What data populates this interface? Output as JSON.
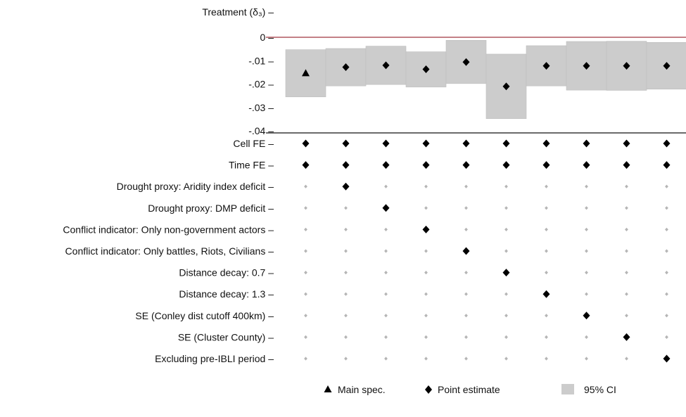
{
  "chart_data": {
    "type": "scatter",
    "title": "",
    "ylabel": "Treatment (δ₃) –",
    "ylim": [
      -0.046,
      0.004
    ],
    "y_ticks": [
      {
        "value": 0,
        "label": "0 –"
      },
      {
        "value": -0.01,
        "label": "-.01 –"
      },
      {
        "value": -0.02,
        "label": "-.02 –"
      },
      {
        "value": -0.03,
        "label": "-.03 –"
      },
      {
        "value": -0.04,
        "label": "-.04 –"
      }
    ],
    "columns": 10,
    "estimates": [
      -0.0153,
      -0.0128,
      -0.012,
      -0.0137,
      -0.0106,
      -0.021,
      -0.0122,
      -0.0122,
      -0.0122,
      -0.0122
    ],
    "ci_low": [
      -0.0255,
      -0.0208,
      -0.0202,
      -0.0213,
      -0.0198,
      -0.0348,
      -0.0208,
      -0.0226,
      -0.0227,
      -0.0222
    ],
    "ci_high": [
      -0.0053,
      -0.0048,
      -0.0038,
      -0.0062,
      -0.0013,
      -0.0072,
      -0.0036,
      -0.0018,
      -0.0017,
      -0.0022
    ],
    "main_spec_column": 0,
    "zero_line_color": "#a0353f",
    "ci_color": "#cccccc",
    "spec_rows": [
      {
        "label": "Cell FE –",
        "active": [
          1,
          1,
          1,
          1,
          1,
          1,
          1,
          1,
          1,
          1
        ]
      },
      {
        "label": "Time FE –",
        "active": [
          1,
          1,
          1,
          1,
          1,
          1,
          1,
          1,
          1,
          1
        ]
      },
      {
        "label": "Drought proxy: Aridity index deficit –",
        "active": [
          0,
          1,
          0,
          0,
          0,
          0,
          0,
          0,
          0,
          0
        ]
      },
      {
        "label": "Drought proxy: DMP deficit –",
        "active": [
          0,
          0,
          1,
          0,
          0,
          0,
          0,
          0,
          0,
          0
        ]
      },
      {
        "label": "Conflict indicator: Only non-government actors –",
        "active": [
          0,
          0,
          0,
          1,
          0,
          0,
          0,
          0,
          0,
          0
        ]
      },
      {
        "label": "Conflict indicator: Only battles, Riots, Civilians –",
        "active": [
          0,
          0,
          0,
          0,
          1,
          0,
          0,
          0,
          0,
          0
        ]
      },
      {
        "label": "Distance decay: 0.7 –",
        "active": [
          0,
          0,
          0,
          0,
          0,
          1,
          0,
          0,
          0,
          0
        ]
      },
      {
        "label": "Distance decay: 1.3 –",
        "active": [
          0,
          0,
          0,
          0,
          0,
          0,
          1,
          0,
          0,
          0
        ]
      },
      {
        "label": "SE (Conley dist cutoff 400km) –",
        "active": [
          0,
          0,
          0,
          0,
          0,
          0,
          0,
          1,
          0,
          0
        ]
      },
      {
        "label": "SE (Cluster County) –",
        "active": [
          0,
          0,
          0,
          0,
          0,
          0,
          0,
          0,
          1,
          0
        ]
      },
      {
        "label": "Excluding pre-IBLI period –",
        "active": [
          0,
          0,
          0,
          0,
          0,
          0,
          0,
          0,
          0,
          1
        ]
      }
    ],
    "legend": {
      "placement": "bottom-center",
      "items": [
        {
          "marker": "triangle",
          "label": "Main spec."
        },
        {
          "marker": "diamond",
          "label": "Point estimate"
        },
        {
          "marker": "square",
          "label": "95% CI"
        }
      ]
    }
  }
}
